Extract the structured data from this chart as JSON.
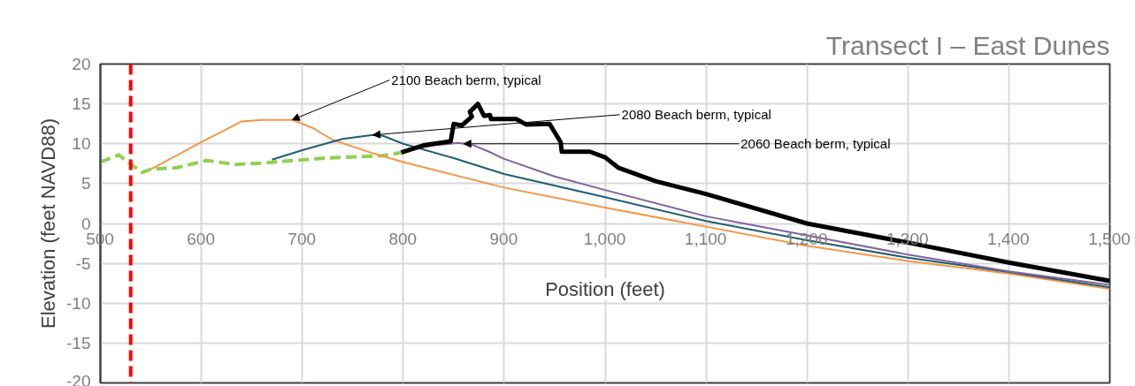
{
  "chart_data": {
    "type": "line",
    "title": "Transect I – East Dunes",
    "xlabel": "Position (feet)",
    "ylabel": "Elevation (feet NAVD88)",
    "xlim": [
      500,
      1500
    ],
    "xticks": [
      500,
      600,
      700,
      800,
      900,
      {
        "value": 1000,
        "label": "1,000"
      },
      {
        "value": 1100,
        "label": "1,100"
      },
      {
        "value": 1200,
        "label": "1,200"
      },
      {
        "value": 1300,
        "label": "1,300"
      },
      {
        "value": 1400,
        "label": "1,400"
      },
      {
        "value": 1500,
        "label": "1,500"
      }
    ],
    "ylim": [
      -20,
      20
    ],
    "yticks": [
      {
        "value": -20,
        "label": "-20"
      },
      {
        "value": -15,
        "label": "-15"
      },
      {
        "value": -10,
        "label": "-10"
      },
      {
        "value": -5,
        "label": "-5"
      },
      0,
      5,
      10,
      15,
      20
    ],
    "grid": true,
    "series": [
      {
        "color": "#92d050",
        "line_style": "dashed",
        "x": [
          500,
          518,
          541,
          550,
          576,
          605,
          634,
          663,
          722,
          780,
          798
        ],
        "values": [
          7.7,
          8.6,
          6.4,
          6.8,
          7.0,
          7.9,
          7.4,
          7.6,
          8.2,
          8.5,
          8.9
        ]
      },
      {
        "color": "#f79646",
        "x": [
          550,
          600,
          640,
          660,
          690,
          710,
          730,
          770,
          800,
          900,
          1000,
          1100,
          1200,
          1300,
          1400,
          1500
        ],
        "values": [
          6.8,
          10.2,
          12.8,
          13.0,
          13.0,
          12.0,
          10.5,
          8.8,
          7.7,
          4.5,
          2.0,
          -0.4,
          -2.8,
          -4.7,
          -6.3,
          -8.2
        ]
      },
      {
        "color": "#1f6070",
        "x": [
          670,
          700,
          740,
          770,
          780,
          800,
          850,
          900,
          1000,
          1100,
          1200,
          1300,
          1400,
          1500
        ],
        "values": [
          8.0,
          9.2,
          10.6,
          11.1,
          11.0,
          10.0,
          8.2,
          6.2,
          3.3,
          0.3,
          -2.1,
          -4.3,
          -6.1,
          -8.0
        ]
      },
      {
        "color": "#8064a2",
        "x": [
          800,
          830,
          855,
          870,
          885,
          900,
          950,
          1000,
          1100,
          1200,
          1300,
          1400,
          1500
        ],
        "values": [
          9.0,
          9.8,
          10.1,
          9.8,
          9.0,
          8.1,
          5.9,
          4.2,
          0.9,
          -1.5,
          -3.9,
          -6.0,
          -7.7
        ]
      },
      {
        "color": "#000000",
        "x": [
          798,
          820,
          847,
          850,
          858,
          868,
          866,
          874,
          880,
          886,
          887,
          912,
          922,
          945,
          956,
          957,
          985,
          1000,
          1013,
          1050,
          1100,
          1200,
          1300,
          1400,
          1500
        ],
        "values": [
          8.9,
          9.8,
          10.3,
          12.5,
          12.3,
          13.4,
          14.0,
          15.0,
          13.5,
          13.6,
          13.1,
          13.1,
          12.4,
          12.5,
          10.2,
          9.0,
          9.0,
          8.3,
          7.0,
          5.3,
          3.7,
          0.0,
          -2.4,
          -4.9,
          -7.2
        ]
      }
    ],
    "ref_lines": [
      {
        "axis": "x",
        "value": 530,
        "color": "#ff0000",
        "line_style": "dashed"
      }
    ],
    "annotations": [
      {
        "text": "2100 Beach berm, typical",
        "x": 690,
        "y": 13.0
      },
      {
        "text": "2080 Beach berm, typical",
        "x": 770,
        "y": 11.1
      },
      {
        "text": "2060 Beach berm, typical",
        "x": 860,
        "y": 10.0
      }
    ]
  }
}
